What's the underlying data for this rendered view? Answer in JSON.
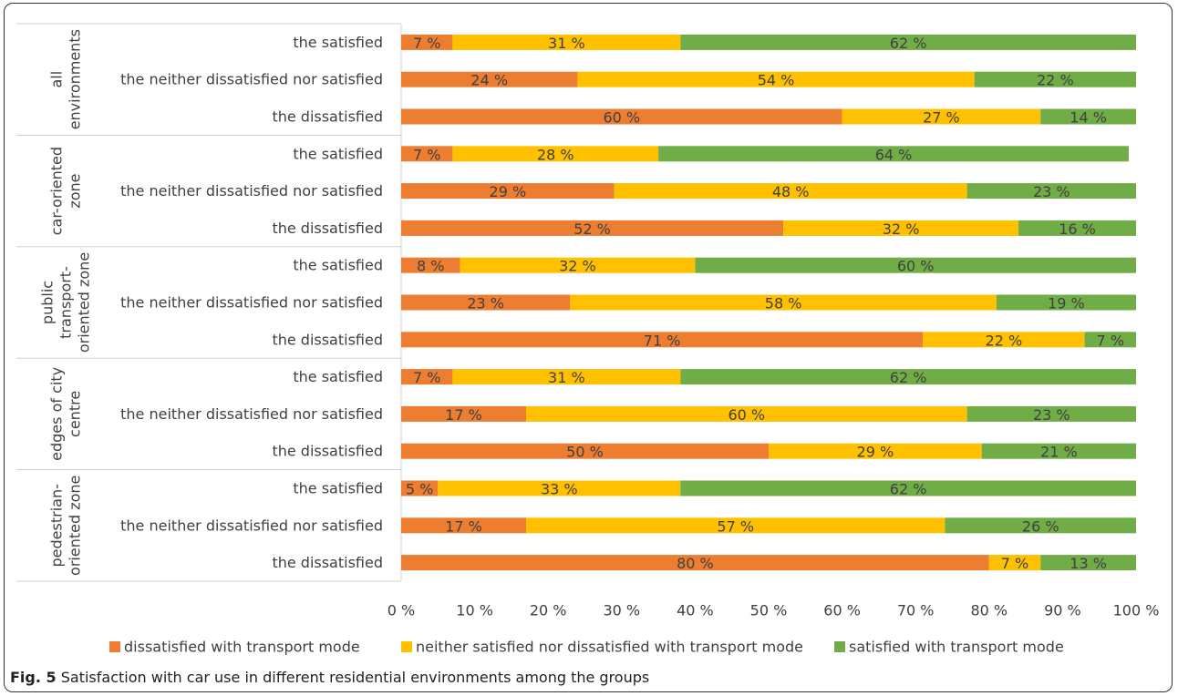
{
  "chart_data": {
    "type": "bar",
    "orientation": "horizontal",
    "stacked": true,
    "percent_stacked": true,
    "groups": [
      {
        "label": "all environments",
        "categories": [
          "the satisfied",
          "the neither dissatisfied nor satisfied",
          "the dissatisfied"
        ]
      },
      {
        "label": "car-oriented zone",
        "categories": [
          "the satisfied",
          "the neither dissatisfied nor satisfied",
          "the dissatisfied"
        ]
      },
      {
        "label": "public transport-oriented zone",
        "categories": [
          "the satisfied",
          "the neither dissatisfied nor satisfied",
          "the dissatisfied"
        ]
      },
      {
        "label": "edges of city centre",
        "categories": [
          "the satisfied",
          "the neither dissatisfied nor satisfied",
          "the dissatisfied"
        ]
      },
      {
        "label": "pedestrian-oriented zone",
        "categories": [
          "the satisfied",
          "the neither dissatisfied nor satisfied",
          "the dissatisfied"
        ]
      }
    ],
    "series": [
      {
        "name": "dissatisfied with transport mode",
        "color": "#ED7D31",
        "values": [
          7,
          24,
          60,
          7,
          29,
          52,
          8,
          23,
          71,
          7,
          17,
          50,
          5,
          17,
          80
        ],
        "labels": [
          "7 %",
          "24 %",
          "60 %",
          "7 %",
          "29 %",
          "52 %",
          "8 %",
          "23 %",
          "71 %",
          "7 %",
          "17 %",
          "50 %",
          "5 %",
          "17 %",
          "80 %"
        ]
      },
      {
        "name": "neither satisfied nor dissatisfied with transport mode",
        "color": "#FFC000",
        "values": [
          31,
          54,
          27,
          28,
          48,
          32,
          32,
          58,
          22,
          31,
          60,
          29,
          33,
          57,
          7
        ],
        "labels": [
          "31 %",
          "54 %",
          "27 %",
          "28 %",
          "48 %",
          "32 %",
          "32 %",
          "58 %",
          "22 %",
          "31 %",
          "60 %",
          "29 %",
          "33 %",
          "57 %",
          "7 %"
        ]
      },
      {
        "name": "satisfied with transport mode",
        "color": "#70AD47",
        "values": [
          62,
          22,
          14,
          64,
          23,
          16,
          60,
          19,
          7,
          62,
          23,
          21,
          62,
          26,
          13
        ],
        "labels": [
          "62 %",
          "22 %",
          "14 %",
          "64 %",
          "23 %",
          "16 %",
          "60 %",
          "19 %",
          "7 %",
          "62 %",
          "23 %",
          "21 %",
          "62 %",
          "26 %",
          "13 %"
        ]
      }
    ],
    "xlim": [
      0,
      100
    ],
    "xticks": [
      "0 %",
      "10 %",
      "20 %",
      "30 %",
      "40 %",
      "50 %",
      "60 %",
      "70 %",
      "80 %",
      "90 %",
      "100 %"
    ],
    "legend_position": "bottom",
    "grid": false
  },
  "caption": {
    "label": "Fig. 5",
    "text": "Satisfaction with car use in different residential environments among the groups"
  }
}
